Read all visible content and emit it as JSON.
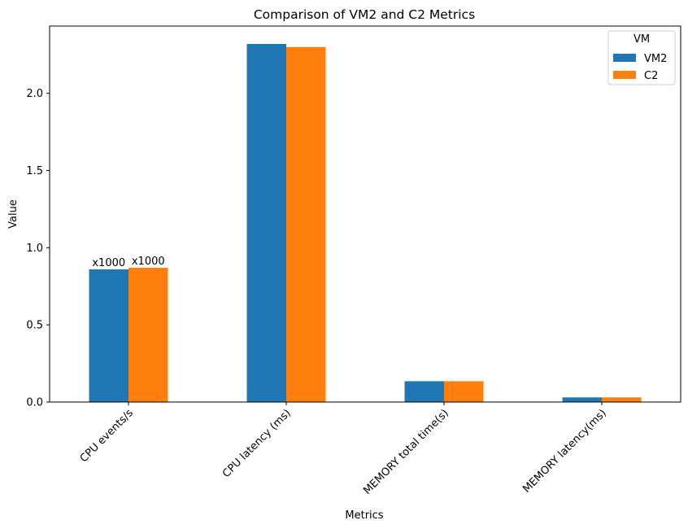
{
  "chart_data": {
    "type": "bar",
    "title": "Comparison of VM2 and C2 Metrics",
    "xlabel": "Metrics",
    "ylabel": "Value",
    "categories": [
      "CPU events/s",
      "CPU latency (ms)",
      "MEMORY total time(s)",
      "MEMORY latency(ms)"
    ],
    "series": [
      {
        "name": "VM2",
        "values": [
          0.86,
          2.32,
          0.135,
          0.03
        ],
        "color": "#1f77b4"
      },
      {
        "name": "C2",
        "values": [
          0.87,
          2.3,
          0.135,
          0.03
        ],
        "color": "#ff7f0e"
      }
    ],
    "bar_labels": [
      {
        "category": 0,
        "series": 0,
        "text": "x1000"
      },
      {
        "category": 0,
        "series": 1,
        "text": "x1000"
      }
    ],
    "yticks": [
      "0.0",
      "0.5",
      "1.0",
      "1.5",
      "2.0"
    ],
    "ytick_values": [
      0,
      0.5,
      1.0,
      1.5,
      2.0
    ],
    "ylim": [
      0,
      2.436
    ],
    "legend": {
      "title": "VM",
      "placement": "top-right"
    },
    "grid": false,
    "xtick_rotation": 45
  }
}
